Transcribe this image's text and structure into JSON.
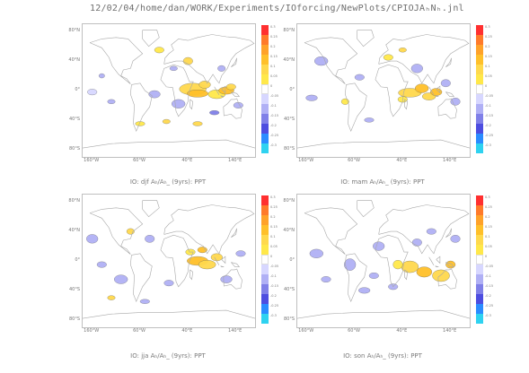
{
  "header": {
    "path": "12/02/04/home/dan/WORK/Experiments/IOforcing/NewPlots/CPIOJAₕNₕ.jnl"
  },
  "colors": {
    "land_outline": "#a8a8a8",
    "ocean": "#ffffff",
    "colorbar": [
      "#ff3030",
      "#ff7a2a",
      "#ffa229",
      "#ffc02a",
      "#ffd94d",
      "#ffe84a",
      "#ffffff",
      "#d7d7ff",
      "#b0b0f5",
      "#8080e8",
      "#4d4de0",
      "#2b8cff",
      "#2fd2f0"
    ]
  },
  "chart_data": [
    {
      "type": "heatmap",
      "title": "IO: djf Aₕ/Aₕ_ (9yrs): PPT",
      "y_tick_labels": [
        "80°N",
        "40°N",
        "0°",
        "40°S",
        "80°S"
      ],
      "x_tick_labels": [
        "160°W",
        "60°W",
        "40°E",
        "140°E"
      ],
      "colorbar_labels": [
        "0.3",
        "0.25",
        "0.2",
        "0.15",
        "0.1",
        "0.05",
        "0",
        "-0.05",
        "-0.1",
        "-0.15",
        "-0.2",
        "-0.25",
        "-0.3"
      ]
    },
    {
      "type": "heatmap",
      "title": "IO: mam Aₕ/Aₕ_ (9yrs): PPT",
      "y_tick_labels": [
        "80°N",
        "40°N",
        "0°",
        "40°S",
        "80°S"
      ],
      "x_tick_labels": [
        "160°W",
        "60°W",
        "40°E",
        "140°E"
      ],
      "colorbar_labels": [
        "0.3",
        "0.25",
        "0.2",
        "0.15",
        "0.1",
        "0.05",
        "0",
        "-0.05",
        "-0.1",
        "-0.15",
        "-0.2",
        "-0.25",
        "-0.3"
      ]
    },
    {
      "type": "heatmap",
      "title": "IO: jja Aₕ/Aₕ_ (9yrs): PPT",
      "y_tick_labels": [
        "80°N",
        "40°N",
        "0°",
        "40°S",
        "80°S"
      ],
      "x_tick_labels": [
        "160°W",
        "60°W",
        "40°E",
        "140°E"
      ],
      "colorbar_labels": [
        "0.3",
        "0.25",
        "0.2",
        "0.15",
        "0.1",
        "0.05",
        "0",
        "-0.05",
        "-0.1",
        "-0.15",
        "-0.2",
        "-0.25",
        "-0.3"
      ]
    },
    {
      "type": "heatmap",
      "title": "IO: son Aₕ/Aₕ_ (9yrs): PPT",
      "y_tick_labels": [
        "80°N",
        "40°N",
        "0°",
        "40°S",
        "80°S"
      ],
      "x_tick_labels": [
        "160°W",
        "60°W",
        "40°E",
        "140°E"
      ],
      "colorbar_labels": [
        "0.3",
        "0.25",
        "0.2",
        "0.15",
        "0.1",
        "0.05",
        "0",
        "-0.05",
        "-0.1",
        "-0.15",
        "-0.2",
        "-0.25",
        "-0.3"
      ]
    }
  ]
}
